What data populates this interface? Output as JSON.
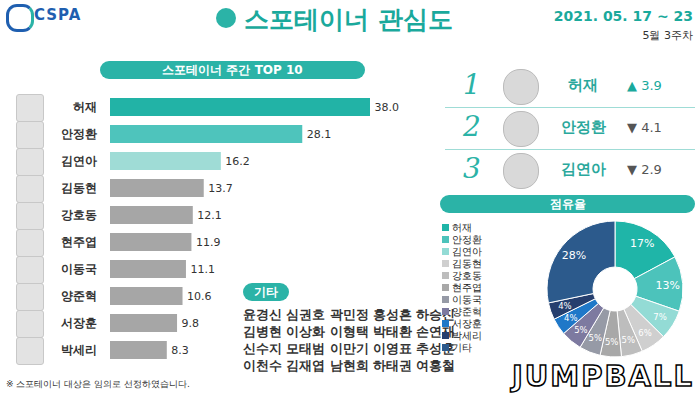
{
  "header": {
    "logo": "CSPA",
    "title": "스포테이너 관심도",
    "date": "2021. 05. 17 ~ 23",
    "week": "5월 3주차"
  },
  "chart_data": [
    {
      "type": "bar",
      "title": "스포테이너 주간 TOP 10",
      "orientation": "horizontal",
      "categories": [
        "허재",
        "안정환",
        "김연아",
        "김동현",
        "강호동",
        "현주엽",
        "이동국",
        "양준혁",
        "서장훈",
        "박세리"
      ],
      "values": [
        38.0,
        28.1,
        16.2,
        13.7,
        12.1,
        11.9,
        11.1,
        10.6,
        9.8,
        8.3
      ],
      "value_labels": [
        "38.0",
        "28.1",
        "16.2",
        "13.7",
        "12.1",
        "11.9",
        "11.1",
        "10.6",
        "9.8",
        "8.3"
      ],
      "colors": [
        "#22b3a6",
        "#4ec4bc",
        "#9fdcd6",
        "#a6a6a6",
        "#a6a6a6",
        "#a6a6a6",
        "#a6a6a6",
        "#a6a6a6",
        "#a6a6a6",
        "#a6a6a6"
      ],
      "xlim": [
        0,
        38
      ],
      "data_labels": true,
      "tick_labels": "y",
      "grid": false
    },
    {
      "type": "pie",
      "title": "점유율",
      "categories": [
        "허재",
        "안정환",
        "김연아",
        "김동현",
        "강호동",
        "현주엽",
        "이동국",
        "양준혁",
        "서장훈",
        "박세리",
        "기타"
      ],
      "values": [
        17,
        13,
        7,
        6,
        5,
        5,
        5,
        5,
        4,
        4,
        28
      ],
      "value_labels": [
        "17%",
        "13%",
        "7%",
        "6%",
        "5%",
        "5%",
        "5%",
        "5%",
        "4%",
        "4%",
        "28%"
      ],
      "colors": [
        "#1fb5a8",
        "#4cc3bb",
        "#93dbd5",
        "#cfcfcf",
        "#bdbdbd",
        "#a8a8a8",
        "#969aa6",
        "#7d7aa0",
        "#1f78c8",
        "#263f6e",
        "#2c5a8c"
      ],
      "legend": "left",
      "data_labels": true
    }
  ],
  "ranking": [
    {
      "rank": 1,
      "name": "허재",
      "change": "▲ 3.9"
    },
    {
      "rank": 2,
      "name": "안정환",
      "change": "▼ 4.1"
    },
    {
      "rank": 3,
      "name": "김연아",
      "change": "▼ 2.9"
    }
  ],
  "others": {
    "title": "기타",
    "rows": [
      [
        "윤경신",
        "심권호",
        "곽민정",
        "홍성흔",
        "하승진"
      ],
      [
        "김병현",
        "이상화",
        "이형택",
        "박태환",
        "손연재"
      ],
      [
        "신수지",
        "모태범",
        "이만기",
        "이영표",
        "추성훈"
      ],
      [
        "이천수",
        "김재엽",
        "남현희",
        "하태권",
        "여홍철"
      ]
    ]
  },
  "footnote": "※ 스포테이너 대상은 임의로 선정하였습니다.",
  "watermark": "JUMPBALL"
}
